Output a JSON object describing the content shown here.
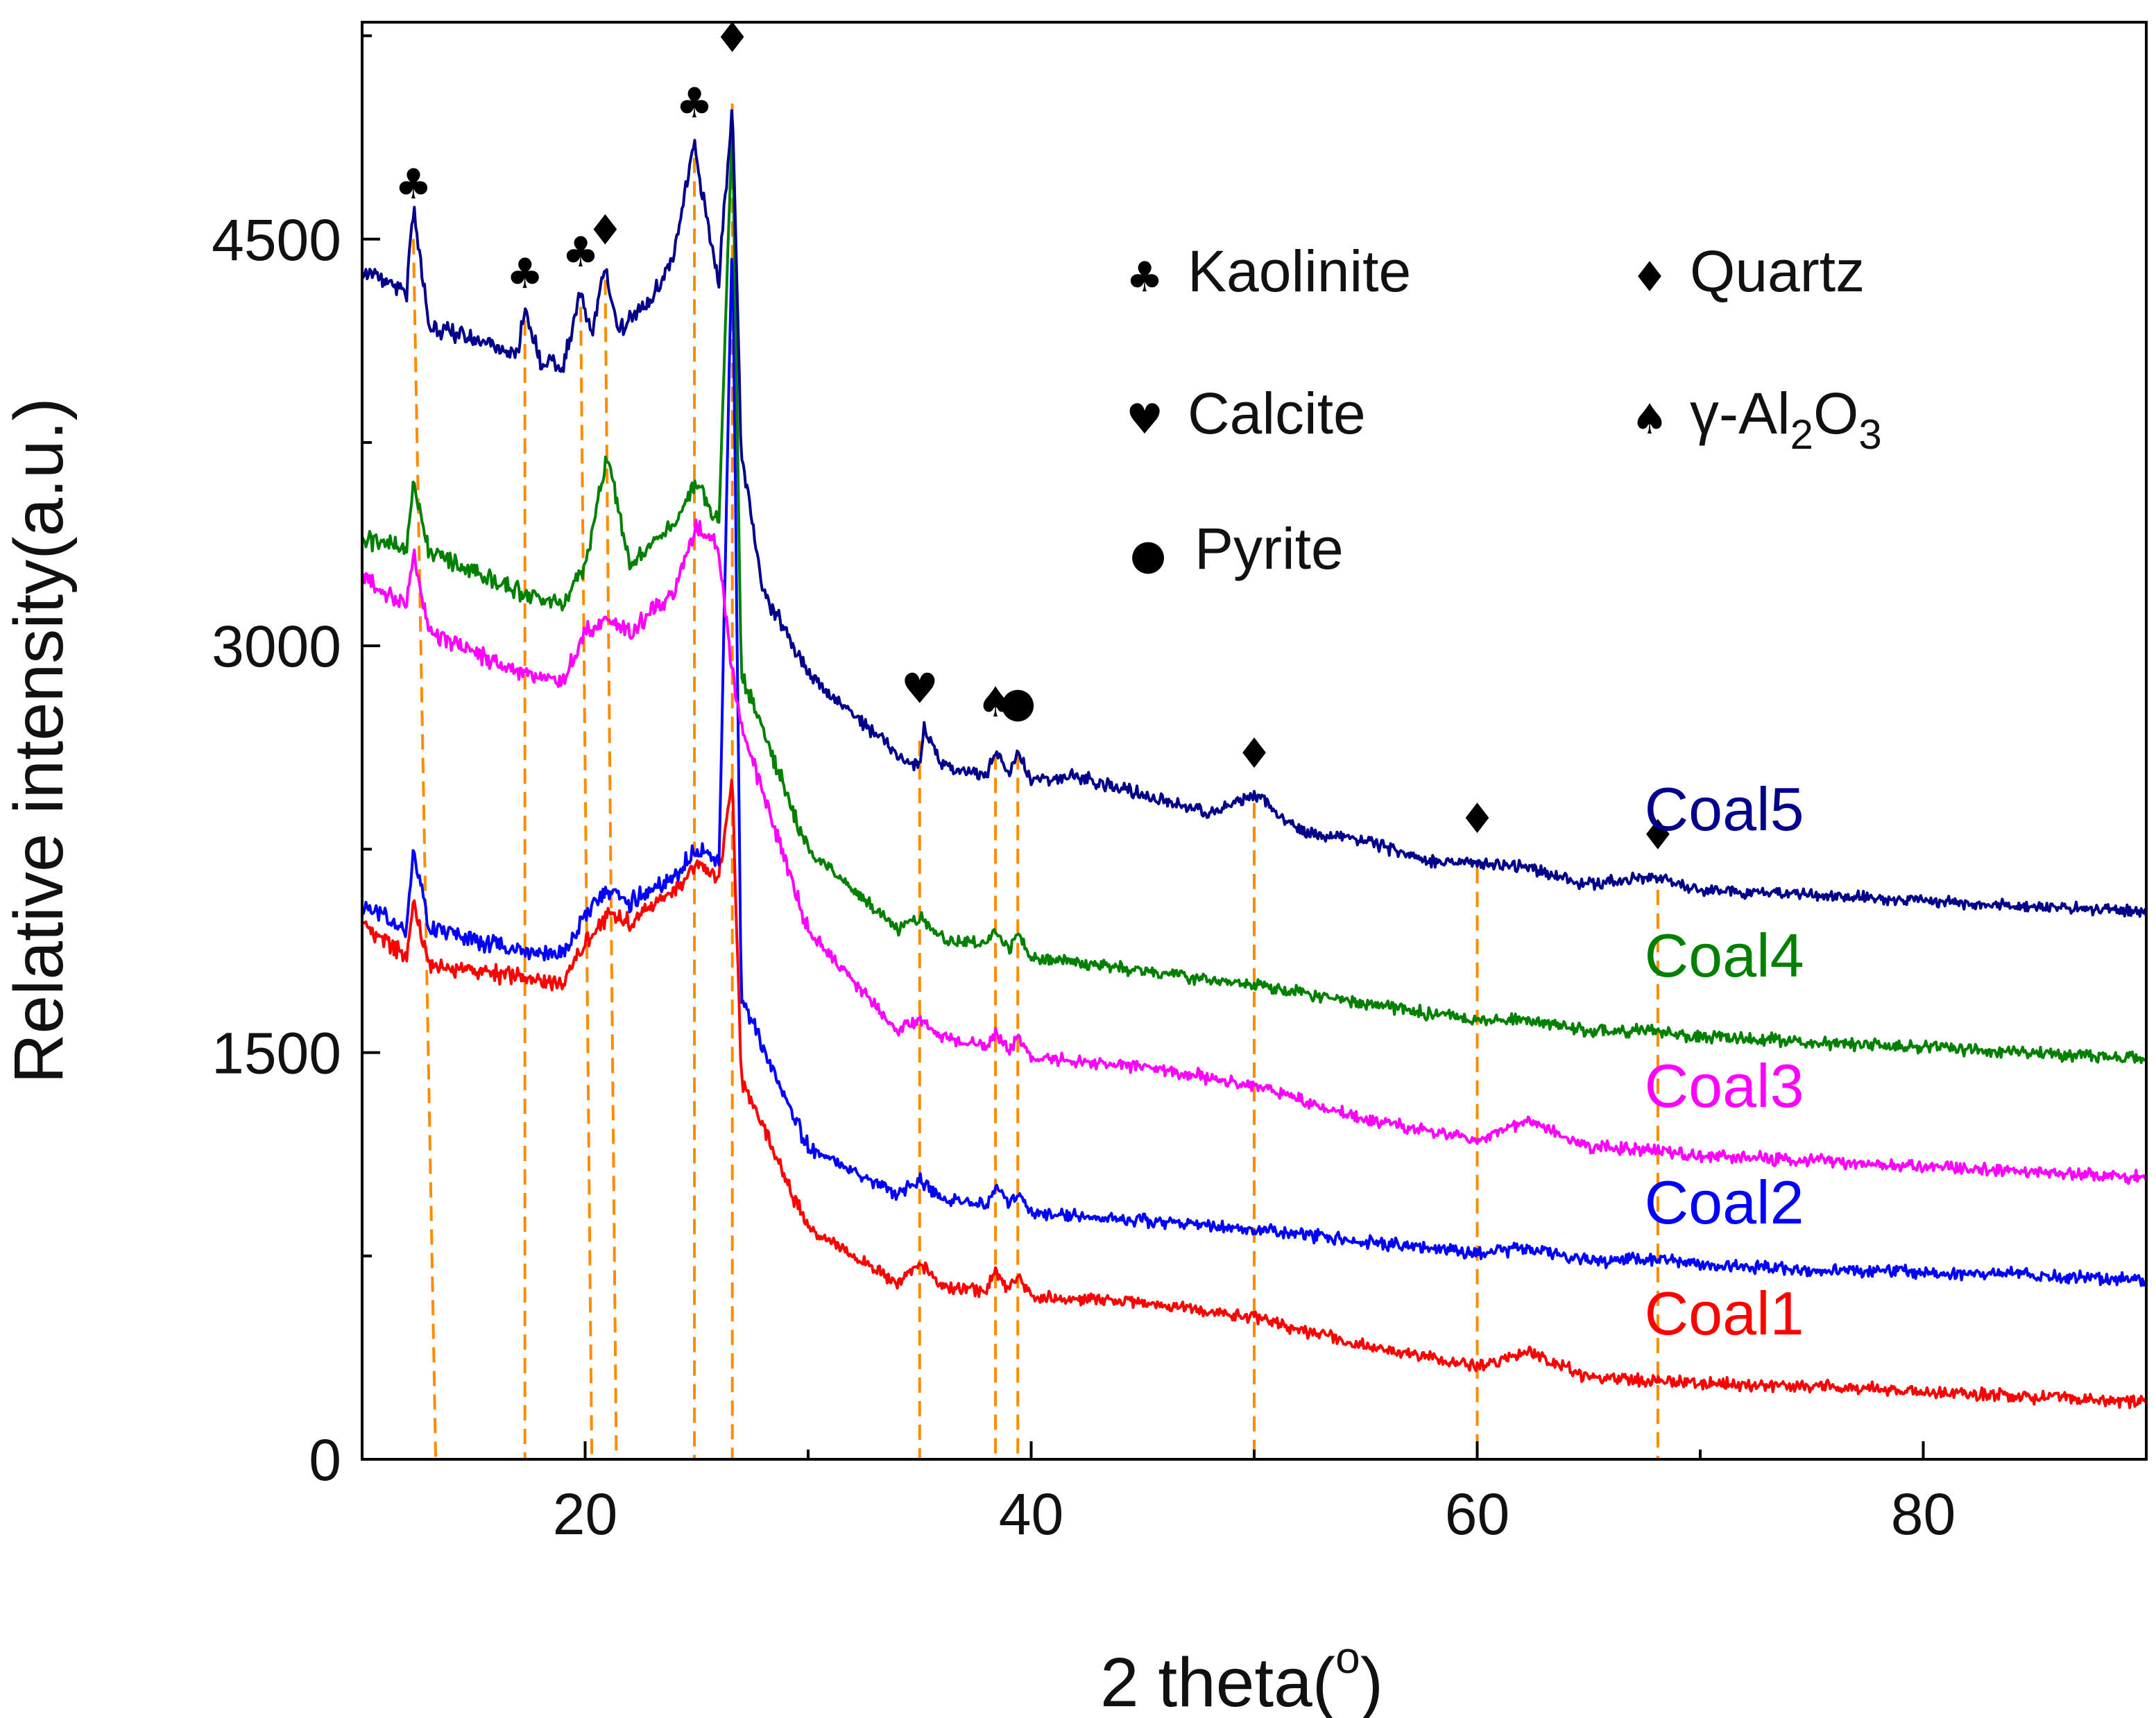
{
  "chart_data": {
    "type": "line",
    "xlabel": "2 theta(",
    "xlabel_superscript": "o",
    "xlabel_suffix": ")",
    "ylabel": "Relative intensity(a.u.)",
    "xlim": [
      10,
      90
    ],
    "ylim": [
      0,
      5300
    ],
    "x_ticks": [
      20,
      40,
      60,
      80
    ],
    "x_minor_ticks": [
      10,
      30,
      50,
      70,
      90
    ],
    "y_ticks": [
      0,
      1500,
      3000,
      4500
    ],
    "y_minor_ticks": [
      750,
      2250,
      3750,
      5250
    ],
    "series": [
      {
        "name": "Coal1",
        "color": "#ff0000",
        "x": [
          10,
          12,
          12.3,
          13,
          17,
          19,
          20,
          21,
          22,
          24,
          25,
          26,
          26.6,
          27,
          30,
          34,
          35,
          36,
          38,
          38.4,
          39,
          39.4,
          40,
          45,
          50,
          55,
          60,
          62.3,
          65,
          68,
          70,
          75,
          80,
          85,
          90
        ],
        "y": [
          1980,
          1850,
          2050,
          1820,
          1780,
          1760,
          1900,
          2000,
          1980,
          2100,
          2200,
          2150,
          2500,
          1400,
          850,
          650,
          720,
          640,
          620,
          700,
          620,
          680,
          600,
          580,
          520,
          420,
          340,
          400,
          300,
          290,
          280,
          270,
          250,
          230,
          210
        ]
      },
      {
        "name": "Coal2",
        "color": "#0000ff",
        "x": [
          10,
          12,
          12.3,
          13,
          17,
          19,
          20,
          21,
          22,
          24,
          25,
          26,
          26.6,
          27,
          30,
          34,
          35,
          36,
          38,
          38.4,
          39,
          39.4,
          40,
          45,
          50,
          55,
          60,
          62.3,
          65,
          68,
          70,
          75,
          80,
          85,
          90
        ],
        "y": [
          2050,
          1950,
          2250,
          1950,
          1880,
          1860,
          2000,
          2100,
          2050,
          2150,
          2250,
          2200,
          4550,
          1700,
          1150,
          980,
          1030,
          960,
          940,
          1010,
          940,
          990,
          910,
          880,
          850,
          800,
          760,
          780,
          730,
          740,
          720,
          700,
          690,
          680,
          660
        ]
      },
      {
        "name": "Coal3",
        "color": "#ff00ff",
        "x": [
          10,
          12,
          12.3,
          13,
          17,
          19,
          20,
          21,
          22,
          24,
          25,
          26,
          26.6,
          27,
          30,
          34,
          35,
          36,
          38,
          38.4,
          39,
          39.4,
          40,
          45,
          50,
          55,
          60,
          62.3,
          65,
          68,
          70,
          75,
          80,
          85,
          90
        ],
        "y": [
          3250,
          3150,
          3350,
          3050,
          2900,
          2860,
          3050,
          3100,
          3050,
          3200,
          3450,
          3350,
          2900,
          2700,
          1950,
          1580,
          1620,
          1560,
          1520,
          1580,
          1500,
          1560,
          1480,
          1450,
          1380,
          1250,
          1180,
          1250,
          1150,
          1140,
          1120,
          1100,
          1080,
          1060,
          1040
        ]
      },
      {
        "name": "Coal4",
        "color": "#008000",
        "x": [
          10,
          12,
          12.3,
          13,
          17,
          19,
          20,
          21,
          22,
          24,
          25,
          26,
          26.6,
          27,
          30,
          34,
          35,
          36,
          38,
          38.4,
          39,
          39.4,
          40,
          45,
          50,
          55,
          60,
          62.3,
          65,
          68,
          70,
          75,
          80,
          85,
          90
        ],
        "y": [
          3400,
          3350,
          3600,
          3350,
          3200,
          3150,
          3300,
          3700,
          3300,
          3450,
          3600,
          3450,
          4950,
          2900,
          2250,
          1950,
          2000,
          1920,
          1900,
          1960,
          1880,
          1940,
          1850,
          1800,
          1750,
          1680,
          1620,
          1620,
          1580,
          1580,
          1560,
          1540,
          1520,
          1500,
          1480
        ]
      },
      {
        "name": "Coal5",
        "color": "#00008b",
        "x": [
          10,
          12,
          12.3,
          13,
          17,
          17.3,
          18,
          19,
          19.8,
          20.3,
          20.9,
          21.5,
          22,
          23,
          24,
          24.9,
          25.4,
          26,
          26.6,
          27,
          28,
          29,
          30,
          32,
          34,
          35,
          35.2,
          36,
          38,
          38.4,
          39,
          39.4,
          40,
          42,
          45,
          48,
          50,
          52,
          55,
          58,
          60,
          62.3,
          65,
          68,
          70,
          75,
          80,
          85,
          90
        ],
        "y": [
          4380,
          4300,
          4620,
          4180,
          4080,
          4250,
          4050,
          4020,
          4300,
          4150,
          4400,
          4150,
          4200,
          4280,
          4450,
          4850,
          4600,
          4350,
          5000,
          3700,
          3200,
          3050,
          2900,
          2750,
          2600,
          2550,
          2700,
          2560,
          2520,
          2620,
          2520,
          2610,
          2500,
          2520,
          2450,
          2380,
          2450,
          2320,
          2280,
          2200,
          2200,
          2180,
          2120,
          2150,
          2100,
          2080,
          2060,
          2040,
          2020
        ]
      }
    ],
    "series_labels": [
      {
        "name": "Coal5",
        "text": "Coal5",
        "color": "#00008b",
        "x": 67.5,
        "y": 2320
      },
      {
        "name": "Coal4",
        "text": "Coal4",
        "color": "#008000",
        "x": 67.5,
        "y": 1780
      },
      {
        "name": "Coal3",
        "text": "Coal3",
        "color": "#ff00ff",
        "x": 67.5,
        "y": 1300
      },
      {
        "name": "Coal2",
        "text": "Coal2",
        "color": "#0000ff",
        "x": 67.5,
        "y": 870
      },
      {
        "name": "Coal1",
        "text": "Coal1",
        "color": "#ff0000",
        "x": 67.5,
        "y": 460
      }
    ],
    "reference_lines": [
      {
        "x_top": 12.3,
        "x_bottom": 13.3,
        "y_top": 4500
      },
      {
        "x_top": 17.3,
        "x_bottom": 17.3,
        "y_top": 4200
      },
      {
        "x_top": 19.8,
        "x_bottom": 20.3,
        "y_top": 4250
      },
      {
        "x_top": 20.9,
        "x_bottom": 21.4,
        "y_top": 4350
      },
      {
        "x_top": 24.9,
        "x_bottom": 24.9,
        "y_top": 4800
      },
      {
        "x_top": 26.6,
        "x_bottom": 26.6,
        "y_top": 5000
      },
      {
        "x_top": 35.0,
        "x_bottom": 35.0,
        "y_top": 2650
      },
      {
        "x_top": 38.4,
        "x_bottom": 38.4,
        "y_top": 2600
      },
      {
        "x_top": 39.4,
        "x_bottom": 39.4,
        "y_top": 2600
      },
      {
        "x_top": 50.0,
        "x_bottom": 50.0,
        "y_top": 2420
      },
      {
        "x_top": 60.0,
        "x_bottom": 60.0,
        "y_top": 2180
      },
      {
        "x_top": 68.1,
        "x_bottom": 68.1,
        "y_top": 2100
      }
    ],
    "reference_line_color": "#ff8c00",
    "peak_markers": [
      {
        "x": 12.3,
        "y": 4650,
        "symbol": "♣"
      },
      {
        "x": 17.3,
        "y": 4320,
        "symbol": "♣"
      },
      {
        "x": 19.8,
        "y": 4400,
        "symbol": "♣"
      },
      {
        "x": 20.9,
        "y": 4480,
        "symbol": "♦"
      },
      {
        "x": 24.9,
        "y": 4950,
        "symbol": "♣"
      },
      {
        "x": 26.6,
        "y": 5190,
        "symbol": "♦"
      },
      {
        "x": 35.0,
        "y": 2790,
        "symbol": "♥"
      },
      {
        "x": 38.4,
        "y": 2740,
        "symbol": "♠"
      },
      {
        "x": 39.4,
        "y": 2740,
        "symbol": "●"
      },
      {
        "x": 50.0,
        "y": 2550,
        "symbol": "♦"
      },
      {
        "x": 60.0,
        "y": 2310,
        "symbol": "♦"
      },
      {
        "x": 68.1,
        "y": 2250,
        "symbol": "♦"
      }
    ],
    "legend": {
      "placement": "top-right",
      "entries": [
        {
          "symbol": "♣",
          "label": "Kaolinite"
        },
        {
          "symbol": "♦",
          "label": "Quartz"
        },
        {
          "symbol": "♥",
          "label": "Calcite"
        },
        {
          "symbol": "♠",
          "label_prefix": "γ-Al",
          "sub1": "2",
          "label_mid": "O",
          "sub2": "3"
        },
        {
          "symbol": "●",
          "label": "Pyrite"
        }
      ]
    }
  }
}
